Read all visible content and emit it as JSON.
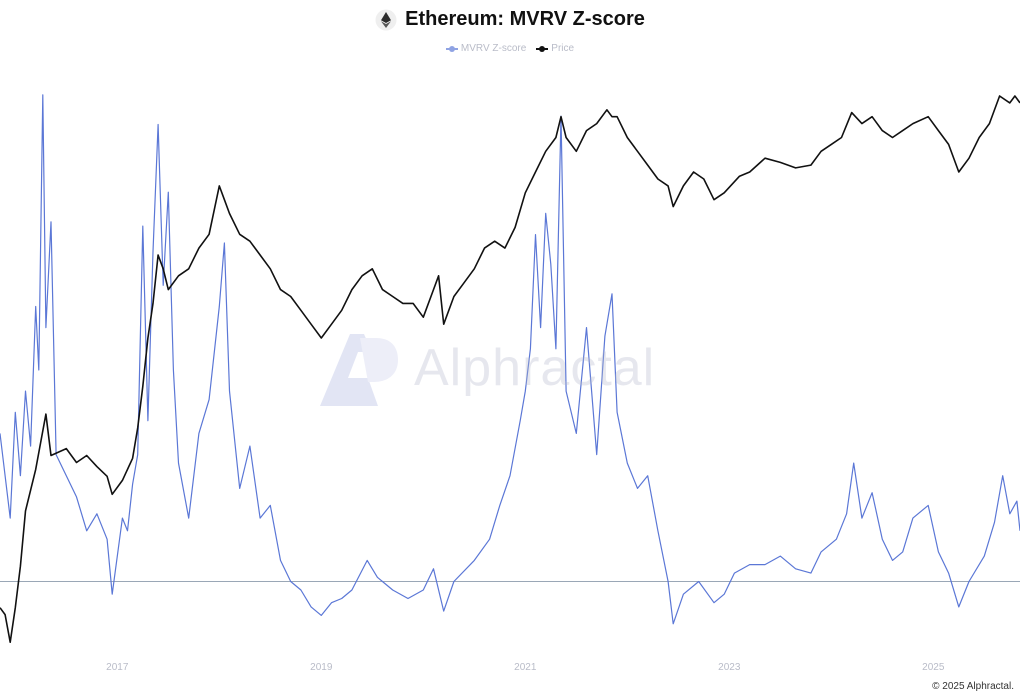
{
  "header": {
    "title": "Ethereum: MVRV Z-score",
    "icon": "ethereum-icon"
  },
  "watermark": {
    "text": "Alphractal",
    "icon": "alphractal-logo"
  },
  "footer": {
    "copyright": "© 2025 Alphractal."
  },
  "colors": {
    "zscore": "#5b77d6",
    "price": "#111111",
    "baseline": "#9aa7b6",
    "tick": "#b9bcc8"
  },
  "chart_data": {
    "type": "line",
    "title": "Ethereum: MVRV Z-score",
    "legend": {
      "placement": "top-center",
      "entries": [
        "MVRV Z-score",
        "Price"
      ]
    },
    "x_range": [
      2015.85,
      2025.85
    ],
    "x_ticks": [
      "2017",
      "2019",
      "2021",
      "2023",
      "2025"
    ],
    "x_tick_values": [
      2017,
      2019,
      2021,
      2023,
      2025
    ],
    "grid": false,
    "y_axes_visible": false,
    "zscore_range": [
      -1.5,
      11.9
    ],
    "baseline_value": 0,
    "price_log_range": [
      -0.27,
      3.83
    ],
    "series": [
      {
        "name": "MVRV Z-score",
        "color": "#5b77d6",
        "axis": "left",
        "points": [
          [
            2015.85,
            3.5
          ],
          [
            2015.95,
            1.5
          ],
          [
            2016.0,
            4.0
          ],
          [
            2016.05,
            2.5
          ],
          [
            2016.1,
            4.5
          ],
          [
            2016.15,
            3.2
          ],
          [
            2016.2,
            6.5
          ],
          [
            2016.23,
            5.0
          ],
          [
            2016.27,
            11.5
          ],
          [
            2016.3,
            6.0
          ],
          [
            2016.35,
            8.5
          ],
          [
            2016.4,
            3.0
          ],
          [
            2016.5,
            2.5
          ],
          [
            2016.6,
            2.0
          ],
          [
            2016.7,
            1.2
          ],
          [
            2016.8,
            1.6
          ],
          [
            2016.9,
            1.0
          ],
          [
            2016.95,
            -0.3
          ],
          [
            2017.05,
            1.5
          ],
          [
            2017.1,
            1.2
          ],
          [
            2017.15,
            2.3
          ],
          [
            2017.2,
            3.0
          ],
          [
            2017.25,
            8.4
          ],
          [
            2017.3,
            3.8
          ],
          [
            2017.35,
            7.8
          ],
          [
            2017.4,
            10.8
          ],
          [
            2017.45,
            7.0
          ],
          [
            2017.5,
            9.2
          ],
          [
            2017.55,
            5.0
          ],
          [
            2017.6,
            2.8
          ],
          [
            2017.7,
            1.5
          ],
          [
            2017.8,
            3.5
          ],
          [
            2017.9,
            4.3
          ],
          [
            2018.0,
            6.5
          ],
          [
            2018.05,
            8.0
          ],
          [
            2018.1,
            4.5
          ],
          [
            2018.2,
            2.2
          ],
          [
            2018.3,
            3.2
          ],
          [
            2018.4,
            1.5
          ],
          [
            2018.5,
            1.8
          ],
          [
            2018.6,
            0.5
          ],
          [
            2018.7,
            0.0
          ],
          [
            2018.8,
            -0.2
          ],
          [
            2018.9,
            -0.6
          ],
          [
            2019.0,
            -0.8
          ],
          [
            2019.1,
            -0.5
          ],
          [
            2019.2,
            -0.4
          ],
          [
            2019.3,
            -0.2
          ],
          [
            2019.45,
            0.5
          ],
          [
            2019.55,
            0.1
          ],
          [
            2019.7,
            -0.2
          ],
          [
            2019.85,
            -0.4
          ],
          [
            2020.0,
            -0.2
          ],
          [
            2020.1,
            0.3
          ],
          [
            2020.2,
            -0.7
          ],
          [
            2020.3,
            0.0
          ],
          [
            2020.5,
            0.5
          ],
          [
            2020.65,
            1.0
          ],
          [
            2020.75,
            1.8
          ],
          [
            2020.85,
            2.5
          ],
          [
            2020.95,
            3.8
          ],
          [
            2021.0,
            4.5
          ],
          [
            2021.05,
            5.5
          ],
          [
            2021.1,
            8.2
          ],
          [
            2021.15,
            6.0
          ],
          [
            2021.2,
            8.7
          ],
          [
            2021.25,
            7.5
          ],
          [
            2021.3,
            5.5
          ],
          [
            2021.35,
            11.0
          ],
          [
            2021.4,
            4.5
          ],
          [
            2021.5,
            3.5
          ],
          [
            2021.6,
            6.0
          ],
          [
            2021.7,
            3.0
          ],
          [
            2021.78,
            5.8
          ],
          [
            2021.85,
            6.8
          ],
          [
            2021.9,
            4.0
          ],
          [
            2022.0,
            2.8
          ],
          [
            2022.1,
            2.2
          ],
          [
            2022.2,
            2.5
          ],
          [
            2022.3,
            1.2
          ],
          [
            2022.4,
            0.0
          ],
          [
            2022.45,
            -1.0
          ],
          [
            2022.55,
            -0.3
          ],
          [
            2022.7,
            0.0
          ],
          [
            2022.85,
            -0.5
          ],
          [
            2022.95,
            -0.3
          ],
          [
            2023.05,
            0.2
          ],
          [
            2023.2,
            0.4
          ],
          [
            2023.35,
            0.4
          ],
          [
            2023.5,
            0.6
          ],
          [
            2023.65,
            0.3
          ],
          [
            2023.8,
            0.2
          ],
          [
            2023.9,
            0.7
          ],
          [
            2024.05,
            1.0
          ],
          [
            2024.15,
            1.6
          ],
          [
            2024.22,
            2.8
          ],
          [
            2024.3,
            1.5
          ],
          [
            2024.4,
            2.1
          ],
          [
            2024.5,
            1.0
          ],
          [
            2024.6,
            0.5
          ],
          [
            2024.7,
            0.7
          ],
          [
            2024.8,
            1.5
          ],
          [
            2024.95,
            1.8
          ],
          [
            2025.05,
            0.7
          ],
          [
            2025.15,
            0.2
          ],
          [
            2025.25,
            -0.6
          ],
          [
            2025.35,
            0.0
          ],
          [
            2025.5,
            0.6
          ],
          [
            2025.6,
            1.4
          ],
          [
            2025.68,
            2.5
          ],
          [
            2025.75,
            1.6
          ],
          [
            2025.82,
            1.9
          ],
          [
            2025.85,
            1.2
          ]
        ]
      },
      {
        "name": "Price",
        "color": "#111111",
        "axis": "right",
        "points": [
          [
            2015.85,
            0.0
          ],
          [
            2015.9,
            -0.05
          ],
          [
            2015.95,
            -0.25
          ],
          [
            2016.0,
            0.0
          ],
          [
            2016.05,
            0.3
          ],
          [
            2016.1,
            0.7
          ],
          [
            2016.2,
            1.0
          ],
          [
            2016.3,
            1.4
          ],
          [
            2016.35,
            1.1
          ],
          [
            2016.5,
            1.15
          ],
          [
            2016.6,
            1.05
          ],
          [
            2016.7,
            1.1
          ],
          [
            2016.8,
            1.02
          ],
          [
            2016.9,
            0.95
          ],
          [
            2016.95,
            0.82
          ],
          [
            2017.05,
            0.92
          ],
          [
            2017.15,
            1.08
          ],
          [
            2017.2,
            1.3
          ],
          [
            2017.25,
            1.6
          ],
          [
            2017.3,
            1.95
          ],
          [
            2017.35,
            2.2
          ],
          [
            2017.4,
            2.55
          ],
          [
            2017.45,
            2.45
          ],
          [
            2017.5,
            2.3
          ],
          [
            2017.6,
            2.4
          ],
          [
            2017.7,
            2.45
          ],
          [
            2017.8,
            2.6
          ],
          [
            2017.9,
            2.7
          ],
          [
            2018.0,
            3.05
          ],
          [
            2018.05,
            2.95
          ],
          [
            2018.1,
            2.85
          ],
          [
            2018.2,
            2.7
          ],
          [
            2018.3,
            2.65
          ],
          [
            2018.4,
            2.55
          ],
          [
            2018.5,
            2.45
          ],
          [
            2018.6,
            2.3
          ],
          [
            2018.7,
            2.25
          ],
          [
            2018.8,
            2.15
          ],
          [
            2018.9,
            2.05
          ],
          [
            2019.0,
            1.95
          ],
          [
            2019.1,
            2.05
          ],
          [
            2019.2,
            2.15
          ],
          [
            2019.3,
            2.3
          ],
          [
            2019.4,
            2.4
          ],
          [
            2019.5,
            2.45
          ],
          [
            2019.6,
            2.3
          ],
          [
            2019.7,
            2.25
          ],
          [
            2019.8,
            2.2
          ],
          [
            2019.9,
            2.2
          ],
          [
            2020.0,
            2.1
          ],
          [
            2020.1,
            2.3
          ],
          [
            2020.15,
            2.4
          ],
          [
            2020.2,
            2.05
          ],
          [
            2020.3,
            2.25
          ],
          [
            2020.4,
            2.35
          ],
          [
            2020.5,
            2.45
          ],
          [
            2020.6,
            2.6
          ],
          [
            2020.7,
            2.65
          ],
          [
            2020.8,
            2.6
          ],
          [
            2020.9,
            2.75
          ],
          [
            2021.0,
            3.0
          ],
          [
            2021.1,
            3.15
          ],
          [
            2021.2,
            3.3
          ],
          [
            2021.3,
            3.4
          ],
          [
            2021.35,
            3.55
          ],
          [
            2021.4,
            3.4
          ],
          [
            2021.5,
            3.3
          ],
          [
            2021.6,
            3.45
          ],
          [
            2021.7,
            3.5
          ],
          [
            2021.8,
            3.6
          ],
          [
            2021.85,
            3.55
          ],
          [
            2021.9,
            3.55
          ],
          [
            2022.0,
            3.4
          ],
          [
            2022.1,
            3.3
          ],
          [
            2022.2,
            3.2
          ],
          [
            2022.3,
            3.1
          ],
          [
            2022.4,
            3.05
          ],
          [
            2022.45,
            2.9
          ],
          [
            2022.55,
            3.05
          ],
          [
            2022.65,
            3.15
          ],
          [
            2022.75,
            3.1
          ],
          [
            2022.85,
            2.95
          ],
          [
            2022.95,
            3.0
          ],
          [
            2023.1,
            3.12
          ],
          [
            2023.2,
            3.15
          ],
          [
            2023.35,
            3.25
          ],
          [
            2023.5,
            3.22
          ],
          [
            2023.65,
            3.18
          ],
          [
            2023.8,
            3.2
          ],
          [
            2023.9,
            3.3
          ],
          [
            2024.0,
            3.35
          ],
          [
            2024.1,
            3.4
          ],
          [
            2024.2,
            3.58
          ],
          [
            2024.3,
            3.5
          ],
          [
            2024.4,
            3.55
          ],
          [
            2024.5,
            3.45
          ],
          [
            2024.6,
            3.4
          ],
          [
            2024.7,
            3.45
          ],
          [
            2024.8,
            3.5
          ],
          [
            2024.95,
            3.55
          ],
          [
            2025.05,
            3.45
          ],
          [
            2025.15,
            3.35
          ],
          [
            2025.25,
            3.15
          ],
          [
            2025.35,
            3.25
          ],
          [
            2025.45,
            3.4
          ],
          [
            2025.55,
            3.5
          ],
          [
            2025.65,
            3.7
          ],
          [
            2025.75,
            3.65
          ],
          [
            2025.8,
            3.7
          ],
          [
            2025.85,
            3.65
          ]
        ]
      }
    ]
  }
}
